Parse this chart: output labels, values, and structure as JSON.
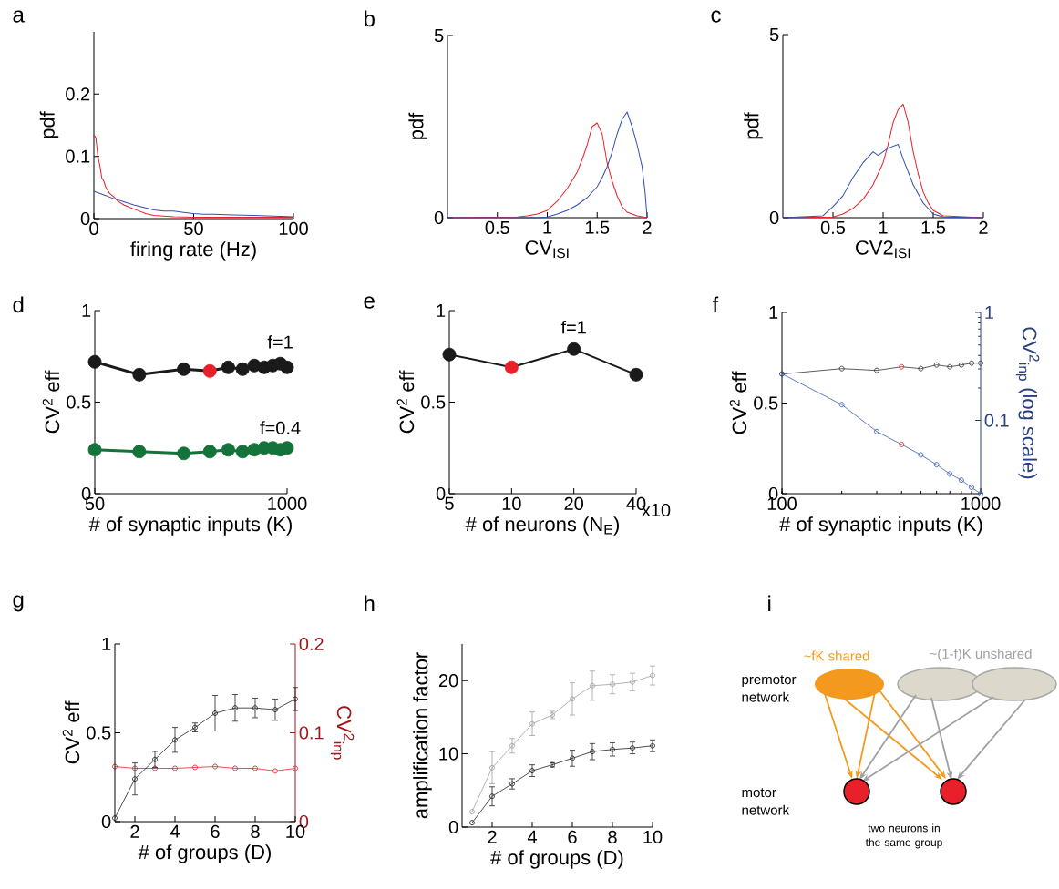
{
  "chart_data": [
    {
      "type": "line",
      "title": "a",
      "xlabel": "firing rate (Hz)",
      "ylabel": "pdf",
      "xlim": [
        0,
        100
      ],
      "xticks": [
        0,
        50,
        100
      ],
      "ylim": [
        0,
        0.3
      ],
      "yticks": [
        0,
        0.1,
        0.2
      ],
      "series": [
        {
          "color": "#e8202a",
          "x": [
            0,
            1,
            2,
            3,
            4,
            5,
            6,
            7,
            8,
            10,
            12,
            15,
            18,
            22,
            26,
            30,
            35,
            40,
            50,
            60,
            70,
            80,
            90,
            100
          ],
          "values": [
            0.135,
            0.13,
            0.1,
            0.085,
            0.065,
            0.06,
            0.05,
            0.045,
            0.04,
            0.035,
            0.028,
            0.022,
            0.018,
            0.013,
            0.008,
            0.005,
            0.004,
            0.003,
            0.002,
            0.002,
            0.002,
            0.002,
            0.002,
            0.002
          ]
        },
        {
          "color": "#3050b0",
          "x": [
            0,
            5,
            10,
            15,
            20,
            25,
            30,
            35,
            40,
            45,
            50,
            55,
            60,
            70,
            80,
            90,
            100
          ],
          "values": [
            0.044,
            0.038,
            0.032,
            0.027,
            0.022,
            0.018,
            0.014,
            0.012,
            0.012,
            0.01,
            0.008,
            0.007,
            0.007,
            0.006,
            0.005,
            0.004,
            0.003
          ]
        }
      ]
    },
    {
      "type": "line",
      "title": "b",
      "xlabel": "CV$_{ISI}$",
      "ylabel": "pdf",
      "xlim": [
        0,
        2
      ],
      "xticks": [
        0.5,
        1,
        1.5,
        2
      ],
      "ylim": [
        0,
        5
      ],
      "yticks": [
        0,
        5
      ],
      "series": [
        {
          "color": "#e8202a",
          "x": [
            0,
            0.7,
            0.8,
            0.9,
            1.0,
            1.1,
            1.2,
            1.3,
            1.35,
            1.4,
            1.45,
            1.5,
            1.55,
            1.6,
            1.65,
            1.7,
            1.75,
            1.8,
            1.9,
            2.0
          ],
          "values": [
            0,
            0.02,
            0.05,
            0.1,
            0.2,
            0.45,
            0.8,
            1.25,
            1.6,
            2.0,
            2.5,
            2.6,
            2.3,
            1.5,
            1.0,
            0.6,
            0.3,
            0.15,
            0.05,
            0
          ]
        },
        {
          "color": "#3050b0",
          "x": [
            0,
            0.9,
            1.0,
            1.1,
            1.2,
            1.3,
            1.4,
            1.5,
            1.55,
            1.6,
            1.65,
            1.7,
            1.75,
            1.8,
            1.85,
            1.9,
            1.95,
            1.98,
            2.0
          ],
          "values": [
            0,
            0,
            0.02,
            0.1,
            0.2,
            0.35,
            0.55,
            0.85,
            1.1,
            1.4,
            1.8,
            2.3,
            2.7,
            2.9,
            2.5,
            2.0,
            1.4,
            0.7,
            0
          ]
        }
      ]
    },
    {
      "type": "line",
      "title": "c",
      "xlabel": "CV2$_{ISI}$",
      "ylabel": "pdf",
      "xlim": [
        0,
        2
      ],
      "xticks": [
        0.5,
        1,
        1.5,
        2
      ],
      "ylim": [
        0,
        5
      ],
      "yticks": [
        0,
        5
      ],
      "series": [
        {
          "color": "#e8202a",
          "x": [
            0,
            0.5,
            0.6,
            0.7,
            0.8,
            0.9,
            1.0,
            1.05,
            1.1,
            1.15,
            1.2,
            1.25,
            1.3,
            1.35,
            1.4,
            1.45,
            1.5,
            1.6,
            2.0
          ],
          "values": [
            0,
            0.02,
            0.1,
            0.25,
            0.5,
            0.9,
            1.5,
            2.0,
            2.6,
            2.95,
            3.1,
            2.6,
            1.8,
            1.2,
            0.7,
            0.4,
            0.2,
            0.05,
            0
          ]
        },
        {
          "color": "#3050b0",
          "x": [
            0,
            0.4,
            0.5,
            0.6,
            0.7,
            0.8,
            0.9,
            0.95,
            1.0,
            1.05,
            1.15,
            1.2,
            1.3,
            1.4,
            1.5,
            1.6,
            2.0
          ],
          "values": [
            0,
            0.05,
            0.3,
            0.6,
            1.1,
            1.5,
            1.8,
            1.7,
            1.8,
            1.9,
            2.0,
            1.6,
            0.9,
            0.4,
            0.1,
            0.02,
            0
          ]
        }
      ]
    },
    {
      "type": "line",
      "title": "d",
      "xlabel": "# of synaptic inputs (K)",
      "ylabel": "CV$^{2}$ eff",
      "log": "x",
      "marker": "circle",
      "xlim": [
        50,
        1000
      ],
      "xticks": [
        50,
        1000
      ],
      "ylim": [
        0,
        1
      ],
      "yticks": [
        0,
        0.5,
        1
      ],
      "series": [
        {
          "name": "f=1",
          "color": "#1a1a1a",
          "colors": [
            "#1a1a1a",
            "#1a1a1a",
            "#1a1a1a",
            "#e8202a",
            "#1a1a1a",
            "#1a1a1a",
            "#1a1a1a",
            "#1a1a1a",
            "#1a1a1a",
            "#1a1a1a",
            "#1a1a1a"
          ],
          "x": [
            50,
            100,
            200,
            300,
            400,
            500,
            600,
            700,
            800,
            900,
            1000
          ],
          "values": [
            0.72,
            0.65,
            0.68,
            0.67,
            0.69,
            0.68,
            0.7,
            0.69,
            0.7,
            0.71,
            0.69
          ]
        },
        {
          "name": "f=0.4",
          "color": "#14733a",
          "x": [
            50,
            100,
            200,
            300,
            400,
            500,
            600,
            700,
            800,
            900,
            1000
          ],
          "values": [
            0.24,
            0.23,
            0.22,
            0.23,
            0.24,
            0.23,
            0.24,
            0.25,
            0.25,
            0.24,
            0.25
          ]
        }
      ]
    },
    {
      "type": "line",
      "title": "e",
      "xlabel": "# of neurons (N$_{E}$)",
      "ylabel": "CV$^{2}$ eff",
      "log": "x",
      "marker": "circle",
      "xlim": [
        5,
        40
      ],
      "xticks": [
        5,
        10,
        20,
        40
      ],
      "ylim": [
        0,
        1
      ],
      "yticks": [
        0,
        0.5,
        1
      ],
      "annotations": [
        "x10"
      ],
      "series": [
        {
          "name": "f=1",
          "color": "#1a1a1a",
          "colors": [
            "#1a1a1a",
            "#e8202a",
            "#1a1a1a",
            "#1a1a1a"
          ],
          "x": [
            5,
            10,
            20,
            40
          ],
          "values": [
            0.76,
            0.69,
            0.79,
            0.65
          ]
        }
      ]
    },
    {
      "type": "line",
      "title": "f",
      "xlabel": "# of synaptic inputs (K)",
      "ylabel": "CV$^{2}$ eff",
      "log": "x",
      "marker": "circle",
      "xlim": [
        100,
        1000
      ],
      "xticks": [
        100,
        1000
      ],
      "ylim": [
        0,
        1
      ],
      "yticks": [
        0,
        0.5,
        1
      ],
      "series": [
        {
          "color": "#333333",
          "colors": [
            "#333333",
            "#333333",
            "#333333",
            "#e8202a",
            "#333333",
            "#333333",
            "#333333",
            "#333333",
            "#333333",
            "#333333"
          ],
          "x": [
            100,
            200,
            300,
            400,
            500,
            600,
            700,
            800,
            900,
            1000
          ],
          "values": [
            0.66,
            0.69,
            0.68,
            0.7,
            0.69,
            0.71,
            0.7,
            0.71,
            0.72,
            0.72
          ]
        }
      ]
    },
    {
      "type": "line",
      "ylabel": "CV$^{2}$$_{inp}$ (log scale)",
      "log": "xy",
      "marker": "circle",
      "tick_labels": "y",
      "xlim": [
        100,
        1000
      ],
      "ylim": [
        0.021,
        1
      ],
      "yticks": [
        0.1,
        1
      ],
      "series": [
        {
          "color": "#3b5bb5",
          "colors": [
            "#3b5bb5",
            "#3b5bb5",
            "#3b5bb5",
            "#e8202a",
            "#3b5bb5",
            "#3b5bb5",
            "#3b5bb5",
            "#3b5bb5",
            "#3b5bb5",
            "#3b5bb5"
          ],
          "x": [
            100,
            200,
            300,
            400,
            500,
            600,
            700,
            800,
            900,
            1000
          ],
          "values": [
            0.27,
            0.14,
            0.079,
            0.06,
            0.048,
            0.039,
            0.032,
            0.028,
            0.024,
            0.021
          ]
        }
      ]
    },
    {
      "type": "line",
      "title": "g",
      "xlabel": "# of groups (D)",
      "ylabel": "CV$^{2}$ eff",
      "y2label": "CV$^{2}$$_{inp}$",
      "marker": "circle",
      "xlim": [
        1,
        10
      ],
      "xticks": [
        2,
        4,
        6,
        8,
        10
      ],
      "ylim": [
        0,
        1
      ],
      "yticks": [
        0,
        0.5,
        1
      ],
      "y2lim": [
        0,
        0.2
      ],
      "y2ticks": [
        0,
        0.1,
        0.2
      ],
      "series": [
        {
          "color": "#222222",
          "x": [
            1,
            2,
            3,
            4,
            5,
            6,
            7,
            8,
            9,
            10
          ],
          "values": [
            0.02,
            0.24,
            0.35,
            0.46,
            0.53,
            0.61,
            0.64,
            0.64,
            0.63,
            0.69
          ],
          "errors": [
            null,
            0.09,
            0.045,
            0.07,
            0.025,
            0.1,
            0.075,
            0.055,
            0.06,
            0.065
          ]
        },
        {
          "color": "#e8202a",
          "axis": "y2",
          "x": [
            1,
            2,
            3,
            4,
            5,
            6,
            7,
            8,
            9,
            10
          ],
          "values": [
            0.062,
            0.06,
            0.06,
            0.06,
            0.061,
            0.062,
            0.06,
            0.06,
            0.057,
            0.06
          ]
        }
      ]
    },
    {
      "type": "line",
      "title": "h",
      "xlabel": "# of groups (D)",
      "ylabel": "amplification  factor",
      "marker": "circle",
      "xlim": [
        0.5,
        10
      ],
      "xticks": [
        2,
        4,
        6,
        8,
        10
      ],
      "ylim": [
        0,
        25
      ],
      "yticks": [
        0,
        10,
        20
      ],
      "series": [
        {
          "color": "#a0a0a0",
          "x": [
            1,
            2,
            3,
            4,
            5,
            6,
            7,
            8,
            9,
            10
          ],
          "values": [
            2.1,
            8.1,
            11.1,
            14.1,
            15.3,
            17.5,
            19.3,
            19.5,
            19.8,
            20.7
          ],
          "errors": [
            null,
            2.2,
            1.0,
            1.6,
            0.5,
            2.2,
            2.0,
            1.3,
            1.2,
            1.3
          ]
        },
        {
          "color": "#222222",
          "x": [
            1,
            2,
            3,
            4,
            5,
            6,
            7,
            8,
            9,
            10
          ],
          "values": [
            0.6,
            4.2,
            5.9,
            7.7,
            8.5,
            9.4,
            10.3,
            10.6,
            10.8,
            11.1
          ],
          "errors": [
            null,
            1.3,
            0.7,
            0.8,
            0.3,
            1.1,
            1.1,
            0.9,
            0.8,
            0.8
          ]
        }
      ]
    },
    {
      "type": "other",
      "title": "i",
      "annotations": [
        "~fK shared",
        "~(1-f)K unshared",
        "premotor network",
        "motor network",
        "two neurons in the same group"
      ]
    }
  ]
}
